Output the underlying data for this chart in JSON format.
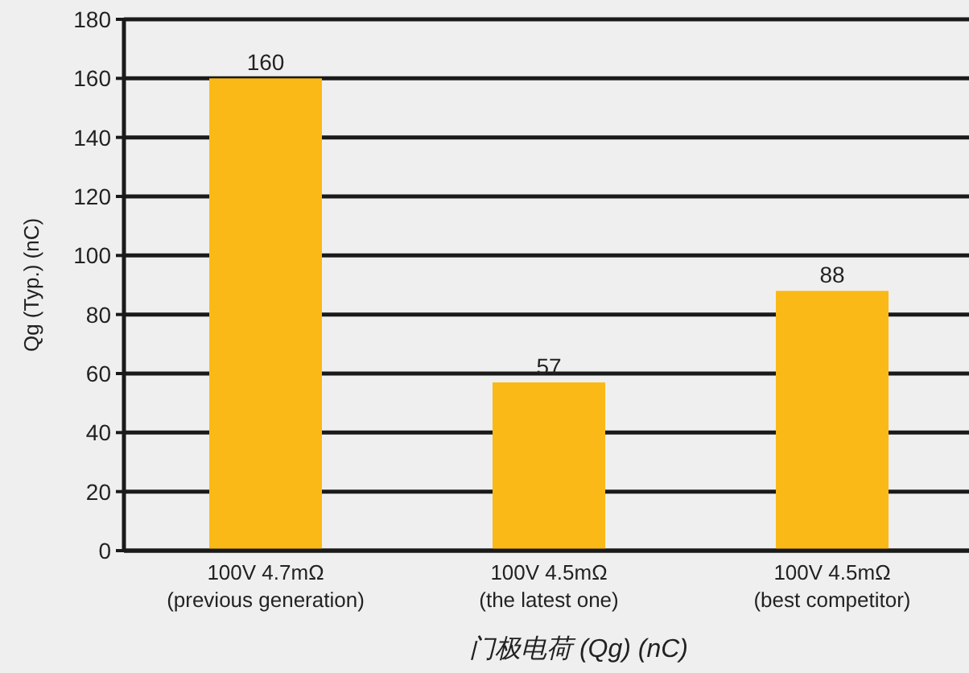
{
  "chart_data": {
    "type": "bar",
    "xlabel": "门极电荷 (Qg) (nC)",
    "ylabel": "Qg (Typ.) (nC)",
    "categories": [
      "100V 4.7mΩ\n(previous generation)",
      "100V 4.5mΩ\n(the latest one)",
      "100V 4.5mΩ\n(best competitor)"
    ],
    "values": [
      160,
      57,
      88
    ],
    "color": "#fbb917",
    "ylim": [
      0,
      180
    ],
    "yticks": [
      0,
      20,
      40,
      60,
      80,
      100,
      120,
      140,
      160,
      180
    ],
    "grid": "y",
    "data_labels": true
  }
}
